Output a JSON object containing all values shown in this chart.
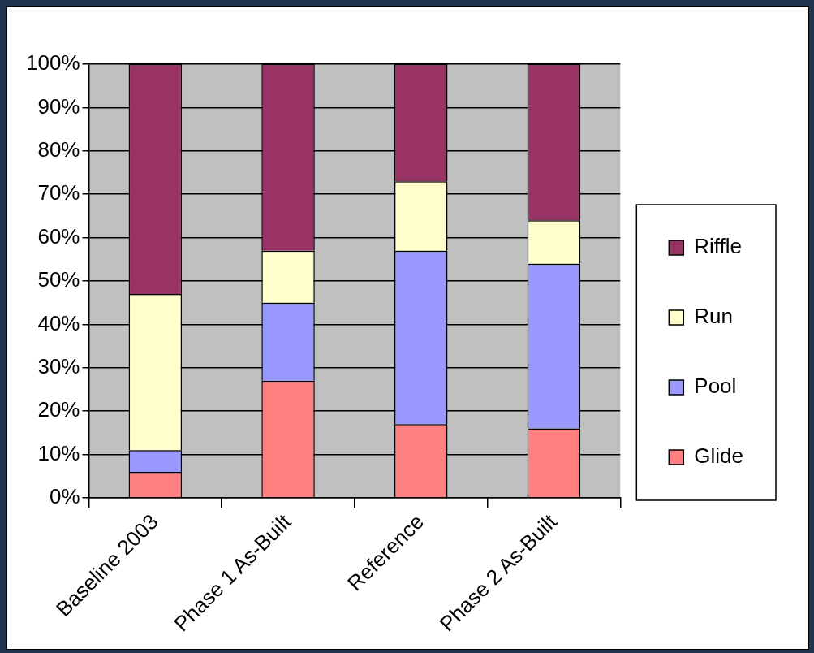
{
  "chart_data": {
    "type": "bar",
    "stacked": true,
    "categories": [
      "Baseline 2003",
      "Phase 1 As-Built",
      "Reference",
      "Phase 2 As-Built"
    ],
    "series": [
      {
        "name": "Glide",
        "color": "#ff8080",
        "values": [
          6,
          27,
          17,
          16
        ]
      },
      {
        "name": "Pool",
        "color": "#9999ff",
        "values": [
          5,
          18,
          40,
          38
        ]
      },
      {
        "name": "Run",
        "color": "#ffffcc",
        "values": [
          36,
          12,
          16,
          10
        ]
      },
      {
        "name": "Riffle",
        "color": "#993366",
        "values": [
          53,
          43,
          27,
          36
        ]
      }
    ],
    "ylim": [
      0,
      100
    ],
    "yticks": [
      {
        "value": 0,
        "label": "0%"
      },
      {
        "value": 10,
        "label": "10%"
      },
      {
        "value": 20,
        "label": "20%"
      },
      {
        "value": 30,
        "label": "30%"
      },
      {
        "value": 40,
        "label": "40%"
      },
      {
        "value": 50,
        "label": "50%"
      },
      {
        "value": 60,
        "label": "60%"
      },
      {
        "value": 70,
        "label": "70%"
      },
      {
        "value": 80,
        "label": "80%"
      },
      {
        "value": 90,
        "label": "90%"
      },
      {
        "value": 100,
        "label": "100%"
      }
    ],
    "grid": "y",
    "legend": "right"
  }
}
